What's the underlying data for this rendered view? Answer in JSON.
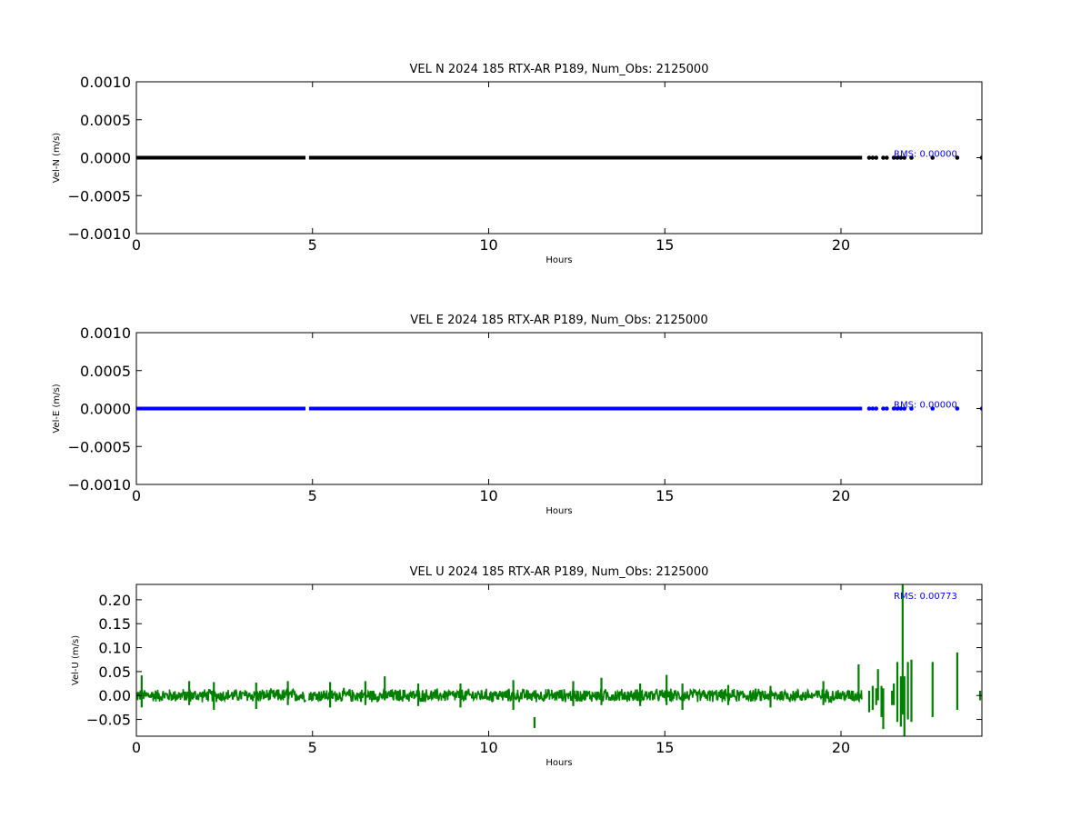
{
  "colors": {
    "north": "#000000",
    "east": "#0000ff",
    "up": "#008000",
    "rms_text": "#0000ff"
  },
  "chart_data": [
    {
      "type": "line",
      "title": "VEL N 2024 185 RTX-AR  P189, Num_Obs: 2125000",
      "xlabel": "Hours",
      "ylabel": "Vel-N (m/s)",
      "xlim": [
        0,
        24
      ],
      "ylim": [
        -0.001,
        0.001
      ],
      "x_ticks": [
        0,
        5,
        10,
        15,
        20
      ],
      "x_tick_labels": [
        "0",
        "5",
        "10",
        "15",
        "20"
      ],
      "y_ticks": [
        -0.001,
        -0.0005,
        0.0,
        0.0005,
        0.001
      ],
      "y_tick_labels": [
        "−0.0010",
        "−0.0005",
        "0.0000",
        "0.0005",
        "0.0010"
      ],
      "rms_label": "RMS:  0.00000",
      "color": "#000000",
      "series": [
        {
          "segments": [
            [
              0,
              4.8
            ],
            [
              4.9,
              20.6
            ]
          ],
          "points": [
            20.8,
            20.9,
            21.0,
            21.2,
            21.3,
            21.5,
            21.6,
            21.7,
            21.8,
            22.0,
            22.6,
            23.3,
            24.0
          ],
          "value": 0.0
        }
      ],
      "grid": false
    },
    {
      "type": "line",
      "title": "VEL E 2024 185 RTX-AR  P189, Num_Obs: 2125000",
      "xlabel": "Hours",
      "ylabel": "Vel-E (m/s)",
      "xlim": [
        0,
        24
      ],
      "ylim": [
        -0.001,
        0.001
      ],
      "x_ticks": [
        0,
        5,
        10,
        15,
        20
      ],
      "x_tick_labels": [
        "0",
        "5",
        "10",
        "15",
        "20"
      ],
      "y_ticks": [
        -0.001,
        -0.0005,
        0.0,
        0.0005,
        0.001
      ],
      "y_tick_labels": [
        "−0.0010",
        "−0.0005",
        "0.0000",
        "0.0005",
        "0.0010"
      ],
      "rms_label": "RMS:  0.00000",
      "color": "#0000ff",
      "series": [
        {
          "segments": [
            [
              0,
              4.8
            ],
            [
              4.9,
              20.6
            ]
          ],
          "points": [
            20.8,
            20.9,
            21.0,
            21.2,
            21.3,
            21.5,
            21.6,
            21.7,
            21.8,
            22.0,
            22.6,
            23.3,
            24.0
          ],
          "value": 0.0
        }
      ],
      "grid": false
    },
    {
      "type": "line",
      "title": "VEL U 2024 185 RTX-AR  P189, Num_Obs: 2125000",
      "xlabel": "Hours",
      "ylabel": "Vel-U (m/s)",
      "xlim": [
        0,
        24
      ],
      "ylim": [
        -0.085,
        0.232
      ],
      "x_ticks": [
        0,
        5,
        10,
        15,
        20
      ],
      "x_tick_labels": [
        "0",
        "5",
        "10",
        "15",
        "20"
      ],
      "y_ticks": [
        -0.05,
        0.0,
        0.05,
        0.1,
        0.15,
        0.2
      ],
      "y_tick_labels": [
        "−0.05",
        "0.00",
        "0.05",
        "0.10",
        "0.15",
        "0.20"
      ],
      "rms_label": "RMS:  0.00773",
      "color": "#008000",
      "series": [
        {
          "noise_segments": [
            [
              0,
              4.8,
              0.012
            ],
            [
              4.9,
              20.6,
              0.012
            ]
          ],
          "spikes": [
            [
              0.15,
              -0.025,
              0.042
            ],
            [
              1.5,
              -0.02,
              0.03
            ],
            [
              2.2,
              -0.03,
              0.028
            ],
            [
              3.4,
              -0.028,
              0.027
            ],
            [
              4.3,
              -0.02,
              0.03
            ],
            [
              5.5,
              -0.025,
              0.028
            ],
            [
              6.5,
              -0.02,
              0.03
            ],
            [
              7.05,
              -0.01,
              0.04
            ],
            [
              8.0,
              -0.022,
              0.025
            ],
            [
              9.2,
              -0.025,
              0.025
            ],
            [
              10.7,
              -0.03,
              0.032
            ],
            [
              11.3,
              -0.068,
              -0.045
            ],
            [
              12.4,
              -0.022,
              0.03
            ],
            [
              13.2,
              -0.02,
              0.037
            ],
            [
              14.3,
              -0.022,
              0.025
            ],
            [
              15.05,
              -0.02,
              0.043
            ],
            [
              15.5,
              -0.03,
              0.025
            ],
            [
              16.8,
              -0.02,
              0.022
            ],
            [
              18.0,
              -0.025,
              0.02
            ],
            [
              19.5,
              -0.02,
              0.03
            ],
            [
              20.5,
              -0.01,
              0.065
            ],
            [
              20.8,
              -0.035,
              0.01
            ],
            [
              20.9,
              -0.03,
              0.02
            ],
            [
              21.0,
              -0.02,
              0.015
            ],
            [
              21.05,
              -0.01,
              0.055
            ],
            [
              21.15,
              -0.045,
              0.02
            ],
            [
              21.2,
              -0.07,
              0.015
            ],
            [
              21.45,
              -0.02,
              0.01
            ],
            [
              21.5,
              -0.02,
              0.025
            ],
            [
              21.6,
              -0.055,
              0.07
            ],
            [
              21.7,
              -0.065,
              0.04
            ],
            [
              21.75,
              -0.04,
              0.232
            ],
            [
              21.8,
              -0.085,
              0.04
            ],
            [
              21.9,
              -0.05,
              0.07
            ],
            [
              22.0,
              -0.055,
              0.075
            ],
            [
              22.6,
              -0.045,
              0.07
            ],
            [
              23.3,
              -0.03,
              0.09
            ],
            [
              23.95,
              -0.01,
              0.01
            ]
          ]
        }
      ],
      "grid": false
    }
  ]
}
